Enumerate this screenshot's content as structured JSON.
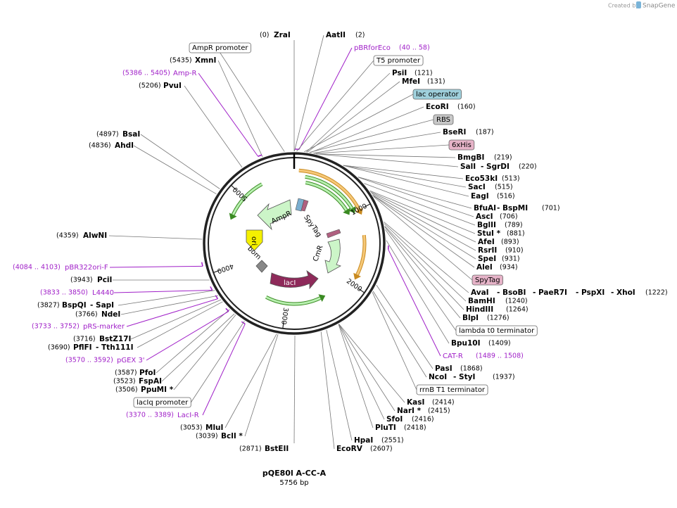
{
  "credit": {
    "created_by": "Created by",
    "brand": "SnapGene"
  },
  "title": "pQE80l A-CC-A",
  "length": "5756 bp",
  "ruler": [
    1000,
    2000,
    3000,
    4000,
    5000
  ],
  "map_features": [
    "AmpR",
    "SpyTag",
    "ori",
    "bom",
    "CmR",
    "lacI"
  ],
  "sites": [
    {
      "position": "(0)",
      "names": [
        "ZraI"
      ]
    },
    {
      "position": "(2)",
      "names": [
        "AatII"
      ]
    },
    {
      "position": "(5435)",
      "names": [
        "XmnI"
      ]
    },
    {
      "position": "(121)",
      "names": [
        "PsiI"
      ]
    },
    {
      "position": "(5206)",
      "names": [
        "PvuI"
      ]
    },
    {
      "position": "(131)",
      "names": [
        "MfeI"
      ]
    },
    {
      "position": "(160)",
      "names": [
        "EcoRI"
      ]
    },
    {
      "position": "(187)",
      "names": [
        "BseRI"
      ]
    },
    {
      "position": "(4897)",
      "names": [
        "BsaI"
      ]
    },
    {
      "position": "(4836)",
      "names": [
        "AhdI"
      ]
    },
    {
      "position": "(219)",
      "names": [
        "BmgBI"
      ]
    },
    {
      "position": "(220)",
      "names": [
        "SalI",
        "- SgrDI"
      ]
    },
    {
      "position": "(513)",
      "names": [
        "Eco53kI"
      ]
    },
    {
      "position": "(515)",
      "names": [
        "SacI"
      ]
    },
    {
      "position": "(516)",
      "names": [
        "EagI"
      ]
    },
    {
      "position": "(701)",
      "names": [
        "BfuAI",
        "- BspMI"
      ]
    },
    {
      "position": "(706)",
      "names": [
        "AscI"
      ]
    },
    {
      "position": "(789)",
      "names": [
        "BglII"
      ]
    },
    {
      "position": "(881)",
      "names": [
        "StuI *"
      ]
    },
    {
      "position": "(893)",
      "names": [
        "AfeI"
      ]
    },
    {
      "position": "(910)",
      "names": [
        "RsrII"
      ]
    },
    {
      "position": "(931)",
      "names": [
        "SpeI"
      ]
    },
    {
      "position": "(934)",
      "names": [
        "AleI"
      ]
    },
    {
      "position": "(4359)",
      "names": [
        "AlwNI"
      ]
    },
    {
      "position": "(3943)",
      "names": [
        "PciI"
      ]
    },
    {
      "position": "(1222)",
      "names": [
        "AvaI",
        "- BsoBI",
        "- PaeR7I",
        "- PspXI",
        "- XhoI"
      ]
    },
    {
      "position": "(1240)",
      "names": [
        "BamHI"
      ]
    },
    {
      "position": "(3827)",
      "names": [
        "BspQI",
        "- SapI"
      ]
    },
    {
      "position": "(1264)",
      "names": [
        "HindIII"
      ]
    },
    {
      "position": "(3766)",
      "names": [
        "NdeI"
      ]
    },
    {
      "position": "(1276)",
      "names": [
        "BlpI"
      ]
    },
    {
      "position": "(3716)",
      "names": [
        "BstZ17I"
      ]
    },
    {
      "position": "(3690)",
      "names": [
        "PflFI",
        "- Tth111I"
      ]
    },
    {
      "position": "(1409)",
      "names": [
        "Bpu10I"
      ]
    },
    {
      "position": "(3587)",
      "names": [
        "PfoI"
      ]
    },
    {
      "position": "(1868)",
      "names": [
        "PasI"
      ]
    },
    {
      "position": "(1937)",
      "names": [
        "NcoI",
        "- StyI"
      ]
    },
    {
      "position": "(3523)",
      "names": [
        "FspAI"
      ]
    },
    {
      "position": "(3506)",
      "names": [
        "PpuMI *"
      ]
    },
    {
      "position": "(2414)",
      "names": [
        "KasI"
      ]
    },
    {
      "position": "(2415)",
      "names": [
        "NarI *"
      ]
    },
    {
      "position": "(2416)",
      "names": [
        "SfoI"
      ]
    },
    {
      "position": "(2418)",
      "names": [
        "PluTI"
      ]
    },
    {
      "position": "(3053)",
      "names": [
        "MluI"
      ]
    },
    {
      "position": "(3039)",
      "names": [
        "BclI *"
      ]
    },
    {
      "position": "(2551)",
      "names": [
        "HpaI"
      ]
    },
    {
      "position": "(2607)",
      "names": [
        "EcoRV"
      ]
    },
    {
      "position": "(2871)",
      "names": [
        "BstEII"
      ]
    }
  ],
  "primers": [
    {
      "name": "pBRforEco",
      "range": "(40 .. 58)"
    },
    {
      "name": "Amp-R",
      "range": "(5386 .. 5405)"
    },
    {
      "name": "pBR322ori-F",
      "range": "(4084 .. 4103)"
    },
    {
      "name": "L4440",
      "range": "(3833 .. 3850)"
    },
    {
      "name": "pRS-marker",
      "range": "(3733 .. 3752)"
    },
    {
      "name": "CAT-R",
      "range": "(1489 .. 1508)"
    },
    {
      "name": "pGEX 3'",
      "range": "(3570 .. 3592)"
    },
    {
      "name": "LacI-R",
      "range": "(3370 .. 3389)"
    }
  ],
  "features": [
    "AmpR promoter",
    "T5 promoter",
    "lac operator",
    "RBS",
    "6xHis",
    "SpyTag",
    "lambda t0 terminator",
    "rrnB T1 terminator",
    "lacIq promoter"
  ]
}
